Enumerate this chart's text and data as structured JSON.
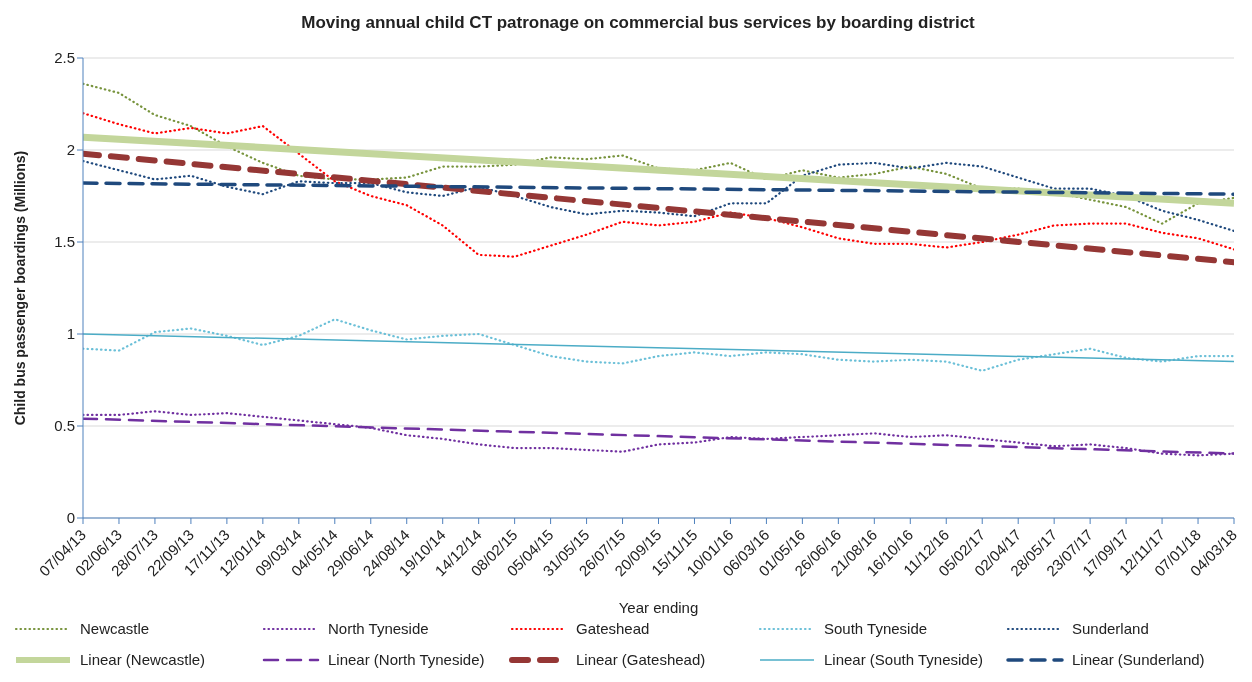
{
  "chart_data": {
    "type": "line",
    "title": "Moving annual child CT patronage on commercial bus services by boarding district",
    "xlabel": "Year ending",
    "ylabel": "Child bus passenger boardings (Millions)",
    "categories": [
      "07/04/13",
      "02/06/13",
      "28/07/13",
      "22/09/13",
      "17/11/13",
      "12/01/14",
      "09/03/14",
      "04/05/14",
      "29/06/14",
      "24/08/14",
      "19/10/14",
      "14/12/14",
      "08/02/15",
      "05/04/15",
      "31/05/15",
      "26/07/15",
      "20/09/15",
      "15/11/15",
      "10/01/16",
      "06/03/16",
      "01/05/16",
      "26/06/16",
      "21/08/16",
      "16/10/16",
      "11/12/16",
      "05/02/17",
      "02/04/17",
      "28/05/17",
      "23/07/17",
      "17/09/17",
      "12/11/17",
      "07/01/18",
      "04/03/18"
    ],
    "ylim": [
      0,
      2.5
    ],
    "yticks": [
      0,
      0.5,
      1,
      1.5,
      2,
      2.5
    ],
    "grid": "y",
    "legend": "bottom",
    "marker": "none",
    "series": [
      {
        "name": "Newcastle",
        "color": "#77933c",
        "line_style": "dotted",
        "values": [
          2.36,
          2.31,
          2.19,
          2.13,
          2.02,
          1.93,
          1.86,
          1.84,
          1.84,
          1.85,
          1.91,
          1.91,
          1.92,
          1.96,
          1.95,
          1.97,
          1.9,
          1.89,
          1.93,
          1.84,
          1.89,
          1.85,
          1.87,
          1.91,
          1.87,
          1.79,
          1.79,
          1.77,
          1.73,
          1.69,
          1.6,
          1.71,
          1.74
        ]
      },
      {
        "name": "North Tyneside",
        "color": "#7030a0",
        "line_style": "dotted",
        "values": [
          0.56,
          0.56,
          0.58,
          0.56,
          0.57,
          0.55,
          0.53,
          0.51,
          0.49,
          0.45,
          0.43,
          0.4,
          0.38,
          0.38,
          0.37,
          0.36,
          0.4,
          0.41,
          0.44,
          0.43,
          0.44,
          0.45,
          0.46,
          0.44,
          0.45,
          0.43,
          0.41,
          0.39,
          0.4,
          0.38,
          0.35,
          0.34,
          0.35
        ]
      },
      {
        "name": "Gateshead",
        "color": "#ff0000",
        "line_style": "dotted",
        "values": [
          2.2,
          2.14,
          2.09,
          2.12,
          2.09,
          2.13,
          1.98,
          1.83,
          1.75,
          1.7,
          1.59,
          1.43,
          1.42,
          1.48,
          1.54,
          1.61,
          1.59,
          1.61,
          1.66,
          1.63,
          1.58,
          1.52,
          1.49,
          1.49,
          1.47,
          1.5,
          1.54,
          1.59,
          1.6,
          1.6,
          1.55,
          1.52,
          1.46
        ]
      },
      {
        "name": "South Tyneside",
        "color": "#6cc0d8",
        "line_style": "dotted",
        "values": [
          0.92,
          0.91,
          1.01,
          1.03,
          0.99,
          0.94,
          0.99,
          1.08,
          1.02,
          0.97,
          0.99,
          1.0,
          0.94,
          0.88,
          0.85,
          0.84,
          0.88,
          0.9,
          0.88,
          0.9,
          0.89,
          0.86,
          0.85,
          0.86,
          0.85,
          0.8,
          0.86,
          0.89,
          0.92,
          0.87,
          0.85,
          0.88,
          0.88
        ]
      },
      {
        "name": "Sunderland",
        "color": "#1f497d",
        "line_style": "dotted",
        "values": [
          1.94,
          1.89,
          1.84,
          1.86,
          1.8,
          1.76,
          1.83,
          1.82,
          1.82,
          1.77,
          1.75,
          1.8,
          1.75,
          1.69,
          1.65,
          1.67,
          1.66,
          1.64,
          1.71,
          1.71,
          1.86,
          1.92,
          1.93,
          1.9,
          1.93,
          1.91,
          1.85,
          1.79,
          1.79,
          1.75,
          1.67,
          1.62,
          1.56
        ]
      },
      {
        "name": "Linear (Newcastle)",
        "color": "#c3d69b",
        "line_style": "solid",
        "values": [
          2.07,
          null,
          null,
          null,
          null,
          null,
          null,
          null,
          null,
          null,
          null,
          null,
          null,
          null,
          null,
          null,
          null,
          null,
          null,
          null,
          null,
          null,
          null,
          null,
          null,
          null,
          null,
          null,
          null,
          null,
          null,
          null,
          1.71
        ]
      },
      {
        "name": "Linear (North Tyneside)",
        "color": "#7030a0",
        "line_style": "dashed",
        "values": [
          0.54,
          null,
          null,
          null,
          null,
          null,
          null,
          null,
          null,
          null,
          null,
          null,
          null,
          null,
          null,
          null,
          null,
          null,
          null,
          null,
          null,
          null,
          null,
          null,
          null,
          null,
          null,
          null,
          null,
          null,
          null,
          null,
          0.35
        ]
      },
      {
        "name": "Linear (Gateshead)",
        "color": "#953735",
        "line_style": "dashed",
        "values": [
          1.98,
          null,
          null,
          null,
          null,
          null,
          null,
          null,
          null,
          null,
          null,
          null,
          null,
          null,
          null,
          null,
          null,
          null,
          null,
          null,
          null,
          null,
          null,
          null,
          null,
          null,
          null,
          null,
          null,
          null,
          null,
          null,
          1.39
        ]
      },
      {
        "name": "Linear (South Tyneside)",
        "color": "#4bacc6",
        "line_style": "solid",
        "values": [
          1.0,
          null,
          null,
          null,
          null,
          null,
          null,
          null,
          null,
          null,
          null,
          null,
          null,
          null,
          null,
          null,
          null,
          null,
          null,
          null,
          null,
          null,
          null,
          null,
          null,
          null,
          null,
          null,
          null,
          null,
          null,
          null,
          0.85
        ]
      },
      {
        "name": "Linear (Sunderland)",
        "color": "#1f497d",
        "line_style": "dashed",
        "values": [
          1.82,
          null,
          null,
          null,
          null,
          null,
          null,
          null,
          null,
          null,
          null,
          null,
          null,
          null,
          null,
          null,
          null,
          null,
          null,
          null,
          null,
          null,
          null,
          null,
          null,
          null,
          null,
          null,
          null,
          null,
          null,
          null,
          1.76
        ]
      }
    ]
  }
}
